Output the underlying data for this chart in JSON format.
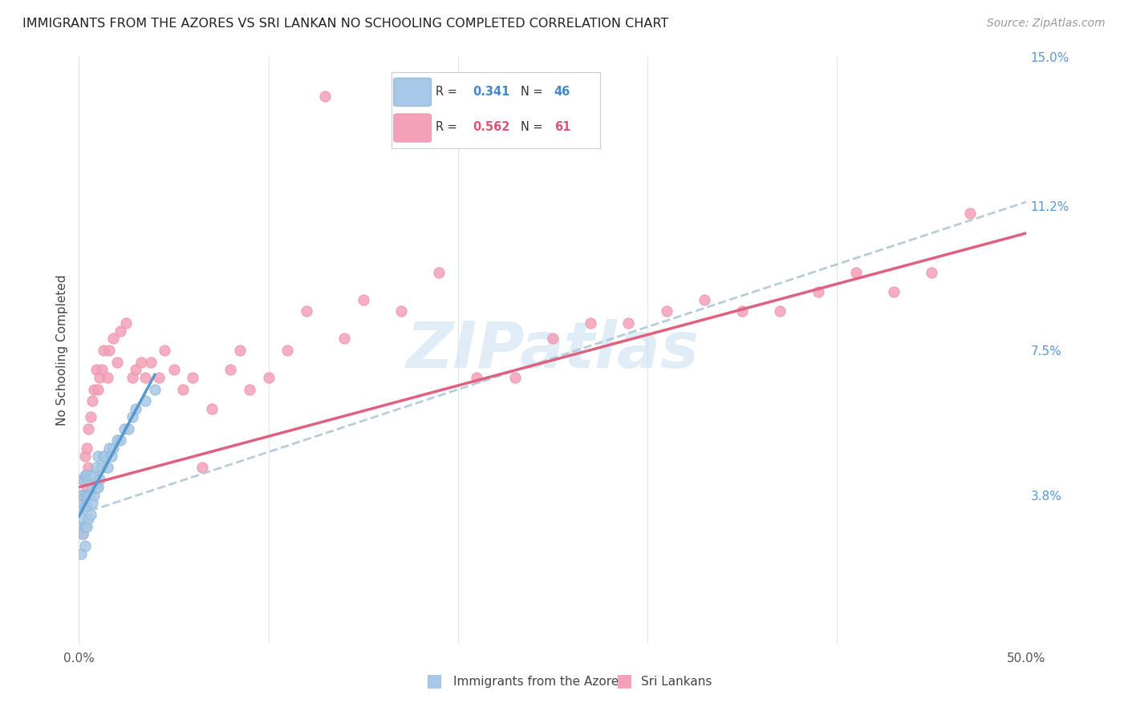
{
  "title": "IMMIGRANTS FROM THE AZORES VS SRI LANKAN NO SCHOOLING COMPLETED CORRELATION CHART",
  "source": "Source: ZipAtlas.com",
  "ylabel": "No Schooling Completed",
  "xlim": [
    0,
    0.5
  ],
  "ylim": [
    0,
    0.15
  ],
  "xtick_positions": [
    0.0,
    0.1,
    0.2,
    0.3,
    0.4,
    0.5
  ],
  "xtick_labels": [
    "0.0%",
    "",
    "",
    "",
    "",
    "50.0%"
  ],
  "ytick_labels_right": [
    "3.8%",
    "7.5%",
    "11.2%",
    "15.0%"
  ],
  "ytick_positions_right": [
    0.038,
    0.075,
    0.112,
    0.15
  ],
  "legend_azores_R": "0.341",
  "legend_azores_N": "46",
  "legend_sri_R": "0.562",
  "legend_sri_N": "61",
  "color_azores": "#a8c8e8",
  "color_sri": "#f4a0b8",
  "color_azores_line_solid": "#5599cc",
  "color_azores_line_dash": "#b0c8d8",
  "color_sri_line": "#e06080",
  "background_color": "#ffffff",
  "grid_color": "#dde4ee",
  "watermark": "ZIPatlas",
  "azores_x": [
    0.001,
    0.001,
    0.001,
    0.002,
    0.002,
    0.002,
    0.002,
    0.003,
    0.003,
    0.003,
    0.003,
    0.003,
    0.004,
    0.004,
    0.004,
    0.004,
    0.005,
    0.005,
    0.005,
    0.006,
    0.006,
    0.006,
    0.007,
    0.007,
    0.008,
    0.008,
    0.009,
    0.009,
    0.01,
    0.01,
    0.011,
    0.012,
    0.013,
    0.014,
    0.015,
    0.016,
    0.017,
    0.018,
    0.02,
    0.022,
    0.024,
    0.026,
    0.028,
    0.03,
    0.035,
    0.04
  ],
  "azores_y": [
    0.023,
    0.03,
    0.035,
    0.028,
    0.032,
    0.038,
    0.042,
    0.025,
    0.03,
    0.035,
    0.038,
    0.043,
    0.03,
    0.035,
    0.038,
    0.043,
    0.032,
    0.038,
    0.042,
    0.033,
    0.038,
    0.043,
    0.036,
    0.04,
    0.038,
    0.043,
    0.04,
    0.045,
    0.04,
    0.048,
    0.042,
    0.045,
    0.048,
    0.048,
    0.045,
    0.05,
    0.048,
    0.05,
    0.052,
    0.052,
    0.055,
    0.055,
    0.058,
    0.06,
    0.062,
    0.065
  ],
  "sri_x": [
    0.001,
    0.001,
    0.002,
    0.002,
    0.003,
    0.003,
    0.004,
    0.004,
    0.005,
    0.005,
    0.006,
    0.007,
    0.008,
    0.009,
    0.01,
    0.011,
    0.012,
    0.013,
    0.015,
    0.016,
    0.018,
    0.02,
    0.022,
    0.025,
    0.028,
    0.03,
    0.033,
    0.035,
    0.038,
    0.042,
    0.045,
    0.05,
    0.055,
    0.06,
    0.065,
    0.07,
    0.08,
    0.085,
    0.09,
    0.1,
    0.11,
    0.12,
    0.13,
    0.14,
    0.15,
    0.17,
    0.19,
    0.21,
    0.23,
    0.25,
    0.27,
    0.29,
    0.31,
    0.33,
    0.35,
    0.37,
    0.39,
    0.41,
    0.43,
    0.45,
    0.47
  ],
  "sri_y": [
    0.03,
    0.038,
    0.028,
    0.042,
    0.035,
    0.048,
    0.04,
    0.05,
    0.045,
    0.055,
    0.058,
    0.062,
    0.065,
    0.07,
    0.065,
    0.068,
    0.07,
    0.075,
    0.068,
    0.075,
    0.078,
    0.072,
    0.08,
    0.082,
    0.068,
    0.07,
    0.072,
    0.068,
    0.072,
    0.068,
    0.075,
    0.07,
    0.065,
    0.068,
    0.045,
    0.06,
    0.07,
    0.075,
    0.065,
    0.068,
    0.075,
    0.085,
    0.14,
    0.078,
    0.088,
    0.085,
    0.095,
    0.068,
    0.068,
    0.078,
    0.082,
    0.082,
    0.085,
    0.088,
    0.085,
    0.085,
    0.09,
    0.095,
    0.09,
    0.095,
    0.11
  ],
  "azores_trend_x0": 0.0,
  "azores_trend_y0": 0.033,
  "azores_trend_x1": 0.5,
  "azores_trend_y1": 0.113,
  "sri_trend_x0": 0.0,
  "sri_trend_y0": 0.04,
  "sri_trend_x1": 0.5,
  "sri_trend_y1": 0.105
}
